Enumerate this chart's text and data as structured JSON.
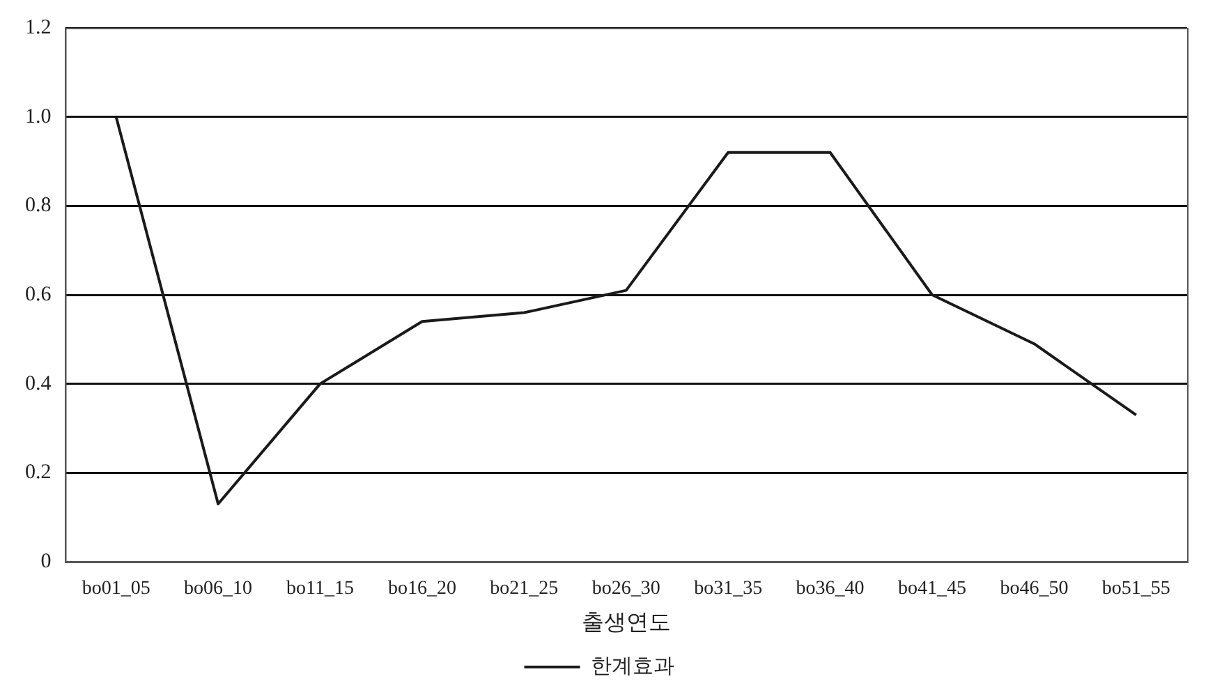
{
  "chart_data": {
    "type": "line",
    "xlabel": "출생연도",
    "categories": [
      "bo01_05",
      "bo06_10",
      "bo11_15",
      "bo16_20",
      "bo21_25",
      "bo26_30",
      "bo31_35",
      "bo36_40",
      "bo41_45",
      "bo46_50",
      "bo51_55"
    ],
    "series": [
      {
        "name": "한계효과",
        "color": "#1a1a1a",
        "values": [
          1.0,
          0.13,
          0.4,
          0.54,
          0.56,
          0.61,
          0.92,
          0.92,
          0.6,
          0.49,
          0.33
        ]
      }
    ],
    "ylim": [
      0,
      1.2
    ],
    "yticks": [
      0,
      0.2,
      0.4,
      0.6,
      0.8,
      {
        "value": 1.0,
        "label": "1.0"
      },
      1.2
    ],
    "grid": "y",
    "legend": "bottom",
    "marker": "none",
    "line_style": "solid"
  }
}
